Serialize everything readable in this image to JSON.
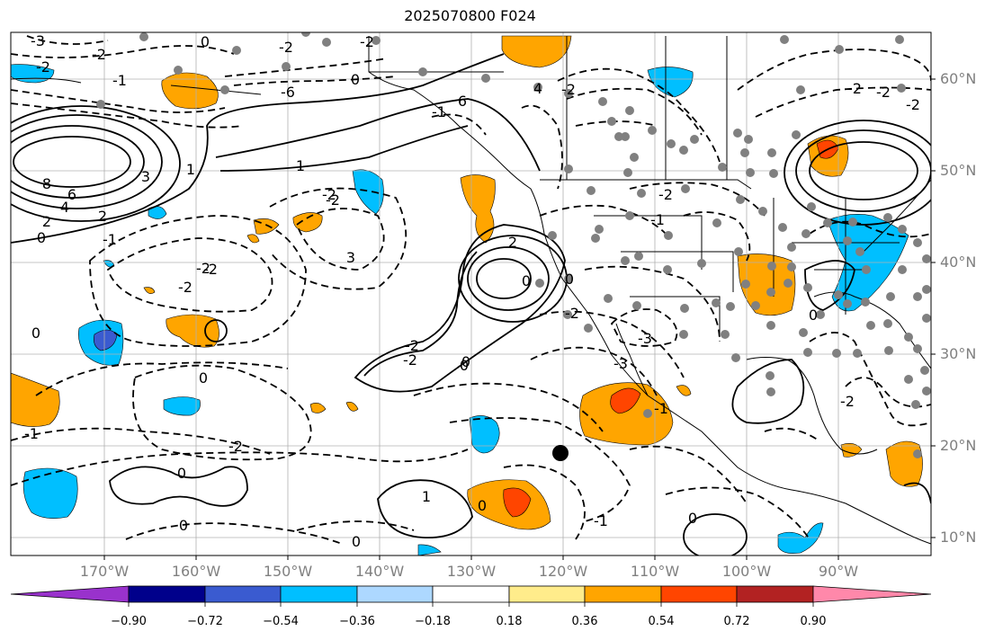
{
  "title": "2025070800 F024",
  "lat_labels": [
    "60°N",
    "50°N",
    "40°N",
    "30°N",
    "20°N",
    "10°N"
  ],
  "lon_labels": [
    "170°W",
    "160°W",
    "150°W",
    "140°W",
    "130°W",
    "120°W",
    "110°W",
    "100°W",
    "90°W"
  ],
  "colorbar": {
    "colors": [
      "#9932cc",
      "#00008b",
      "#3a5bd0",
      "#00bfff",
      "#add8ff",
      "#ffffff",
      "#ffec8b",
      "#ffa500",
      "#ff4500",
      "#b22222",
      "#ff88aa"
    ],
    "labels": [
      "−0.90",
      "−0.72",
      "−0.54",
      "−0.36",
      "−0.18",
      "0.18",
      "0.36",
      "0.54",
      "0.72",
      "0.90"
    ]
  },
  "contour_labels": [
    "-3",
    "-2",
    "-2",
    "-2",
    "-1",
    "0",
    "0",
    "-6",
    "4",
    "-2",
    "-1",
    "-2",
    "-2",
    "1",
    "2",
    "3",
    "4",
    "6",
    "8",
    "2",
    "3",
    "-2",
    "-2",
    "-2",
    "-3",
    "0",
    "-2",
    "0",
    "0",
    "-2",
    "-1",
    "-2",
    "2",
    "-1",
    "-2",
    "-2",
    "-3",
    "0",
    "-1",
    "0",
    "-2",
    "1",
    "0",
    "0",
    "0",
    "-1",
    "0",
    "0",
    "0",
    "0",
    "0",
    "-2",
    "-2",
    "6",
    "-1",
    "-2",
    "1",
    "-2"
  ]
}
